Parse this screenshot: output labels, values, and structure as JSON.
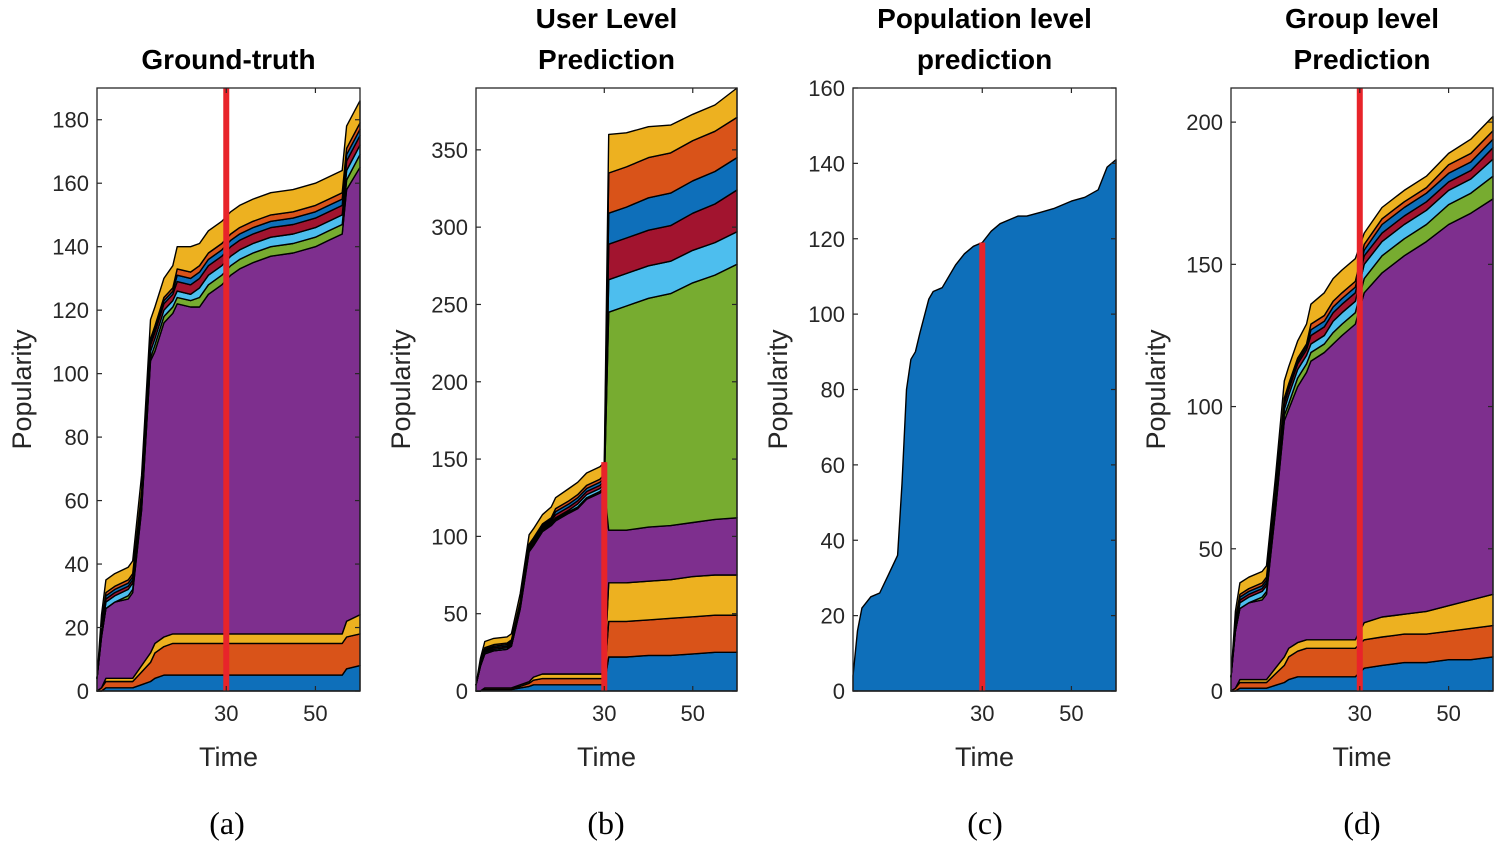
{
  "colors": {
    "blue": "#0e6fba",
    "orange": "#d95319",
    "yellow": "#edb120",
    "purple": "#7e2f8e",
    "green": "#77ac30",
    "cyan": "#4dbeee",
    "darkred": "#a2142f",
    "marker": "#e8242a"
  },
  "chart_data": [
    {
      "type": "area",
      "stacked": true,
      "panel": "a",
      "title": [
        "Ground-truth"
      ],
      "xlabel": "Time",
      "ylabel": "Popularity",
      "caption": "(a)",
      "xlim": [
        1,
        60
      ],
      "ylim": [
        0,
        190
      ],
      "yticks": [
        0,
        20,
        40,
        60,
        80,
        100,
        120,
        140,
        160,
        180
      ],
      "xticks": [
        30,
        50
      ],
      "marker_x": 30,
      "x": [
        1,
        2,
        3,
        5,
        8,
        9,
        11,
        13,
        14,
        16,
        18,
        19,
        22,
        24,
        26,
        29,
        31,
        33,
        36,
        40,
        45,
        50,
        53,
        56,
        57,
        60
      ],
      "series": [
        {
          "name": "blue",
          "color": "blue",
          "values": [
            0,
            0,
            1,
            1,
            1,
            1,
            2,
            3,
            4,
            5,
            5,
            5,
            5,
            5,
            5,
            5,
            5,
            5,
            5,
            5,
            5,
            5,
            5,
            5,
            7,
            8
          ]
        },
        {
          "name": "orange",
          "color": "orange",
          "values": [
            0,
            1,
            2,
            2,
            2,
            2,
            4,
            6,
            8,
            9,
            10,
            10,
            10,
            10,
            10,
            10,
            10,
            10,
            10,
            10,
            10,
            10,
            10,
            10,
            10,
            10
          ]
        },
        {
          "name": "yellow",
          "color": "yellow",
          "values": [
            0,
            0,
            1,
            1,
            1,
            1,
            2,
            3,
            3,
            3,
            3,
            3,
            3,
            3,
            3,
            3,
            3,
            3,
            3,
            3,
            3,
            3,
            3,
            3,
            5,
            6
          ]
        },
        {
          "name": "purple",
          "color": "purple",
          "values": [
            4,
            16,
            22,
            24,
            25,
            27,
            49,
            92,
            92,
            99,
            101,
            104,
            103,
            103,
            107,
            110,
            113,
            115,
            117,
            119,
            120,
            122,
            124,
            126,
            136,
            141
          ]
        },
        {
          "name": "green",
          "color": "green",
          "values": [
            0,
            0,
            0,
            0,
            1,
            1,
            1,
            1,
            2,
            2,
            2,
            2,
            2,
            3,
            3,
            3,
            3,
            3,
            3,
            3,
            3,
            3,
            3,
            3,
            3,
            4
          ]
        },
        {
          "name": "cyan",
          "color": "cyan",
          "values": [
            0,
            1,
            2,
            2,
            2,
            2,
            2,
            2,
            2,
            2,
            2,
            2,
            2,
            3,
            3,
            3,
            3,
            3,
            3,
            3,
            3,
            3,
            3,
            3,
            3,
            3
          ]
        },
        {
          "name": "darkred",
          "color": "darkred",
          "values": [
            0,
            1,
            1,
            1,
            1,
            1,
            1,
            2,
            2,
            2,
            2,
            3,
            3,
            3,
            3,
            3,
            3,
            3,
            3,
            3,
            3,
            3,
            3,
            3,
            3,
            3
          ]
        },
        {
          "name": "blue-top",
          "color": "blue",
          "values": [
            0,
            1,
            1,
            1,
            1,
            1,
            1,
            1,
            1,
            1,
            1,
            2,
            2,
            2,
            2,
            2,
            2,
            2,
            2,
            2,
            2,
            2,
            2,
            2,
            2,
            2
          ]
        },
        {
          "name": "orange-top",
          "color": "orange",
          "values": [
            0,
            1,
            1,
            1,
            1,
            1,
            1,
            1,
            1,
            1,
            1,
            2,
            2,
            2,
            2,
            2,
            2,
            2,
            2,
            2,
            2,
            2,
            2,
            2,
            2,
            2
          ]
        },
        {
          "name": "yellow-top",
          "color": "yellow",
          "values": [
            0,
            3,
            4,
            4,
            4,
            4,
            5,
            6,
            6,
            6,
            7,
            7,
            8,
            7,
            7,
            7,
            7,
            7,
            7,
            7,
            7,
            7,
            7,
            7,
            7,
            7
          ]
        }
      ]
    },
    {
      "type": "area",
      "stacked": true,
      "panel": "b",
      "title": [
        "User Level",
        "Prediction"
      ],
      "xlabel": "Time",
      "ylabel": "Popularity",
      "caption": "(b)",
      "xlim": [
        1,
        60
      ],
      "ylim": [
        0,
        390
      ],
      "yticks": [
        0,
        50,
        100,
        150,
        200,
        250,
        300,
        350
      ],
      "xticks": [
        30,
        50
      ],
      "marker_x": 30,
      "x": [
        1,
        2,
        3,
        5,
        8,
        9,
        11,
        13,
        14,
        16,
        18,
        19,
        22,
        24,
        26,
        29,
        30,
        31,
        35,
        40,
        45,
        50,
        55,
        60
      ],
      "series": [
        {
          "name": "blue",
          "color": "blue",
          "values": [
            0,
            0,
            1,
            1,
            1,
            1,
            2,
            3,
            4,
            4,
            4,
            4,
            4,
            4,
            4,
            4,
            4,
            22,
            22,
            23,
            23,
            24,
            25,
            25
          ]
        },
        {
          "name": "orange",
          "color": "orange",
          "values": [
            0,
            0,
            1,
            1,
            1,
            1,
            1,
            2,
            3,
            4,
            4,
            4,
            4,
            4,
            4,
            4,
            4,
            23,
            23,
            23,
            24,
            24,
            24,
            24
          ]
        },
        {
          "name": "yellow",
          "color": "yellow",
          "values": [
            0,
            0,
            0,
            0,
            0,
            0,
            1,
            1,
            2,
            3,
            3,
            3,
            3,
            3,
            3,
            3,
            3,
            25,
            25,
            25,
            25,
            26,
            26,
            26
          ]
        },
        {
          "name": "purple",
          "color": "purple",
          "values": [
            4,
            16,
            22,
            24,
            25,
            27,
            49,
            84,
            85,
            92,
            96,
            99,
            104,
            107,
            113,
            117,
            120,
            34,
            34,
            35,
            35,
            35,
            36,
            37
          ]
        },
        {
          "name": "green",
          "color": "green",
          "values": [
            0,
            0,
            0,
            0,
            0,
            0,
            1,
            1,
            1,
            1,
            1,
            1,
            1,
            1,
            1,
            1,
            1,
            141,
            145,
            148,
            150,
            155,
            158,
            164
          ]
        },
        {
          "name": "cyan",
          "color": "cyan",
          "values": [
            0,
            0,
            1,
            1,
            1,
            1,
            1,
            1,
            1,
            1,
            1,
            1,
            1,
            2,
            2,
            2,
            2,
            21,
            21,
            21,
            21,
            21,
            21,
            21
          ]
        },
        {
          "name": "darkred",
          "color": "darkred",
          "values": [
            0,
            1,
            1,
            1,
            1,
            1,
            1,
            1,
            1,
            1,
            1,
            2,
            2,
            2,
            2,
            2,
            2,
            23,
            23,
            23,
            23,
            24,
            25,
            27
          ]
        },
        {
          "name": "blue-top",
          "color": "blue",
          "values": [
            0,
            1,
            1,
            1,
            1,
            1,
            1,
            1,
            1,
            1,
            1,
            2,
            2,
            2,
            2,
            2,
            2,
            20,
            20,
            21,
            21,
            21,
            21,
            21
          ]
        },
        {
          "name": "orange-top",
          "color": "orange",
          "values": [
            0,
            1,
            1,
            1,
            1,
            1,
            1,
            1,
            1,
            1,
            1,
            2,
            2,
            2,
            2,
            2,
            2,
            26,
            26,
            26,
            26,
            26,
            26,
            26
          ]
        },
        {
          "name": "yellow-top",
          "color": "yellow",
          "values": [
            0,
            2,
            4,
            4,
            4,
            4,
            5,
            6,
            6,
            6,
            7,
            7,
            8,
            8,
            8,
            8,
            8,
            25,
            22,
            20,
            18,
            17,
            17,
            19
          ]
        }
      ]
    },
    {
      "type": "area",
      "stacked": true,
      "panel": "c",
      "title": [
        "Population level",
        "prediction"
      ],
      "xlabel": "Time",
      "ylabel": "Popularity",
      "caption": "(c)",
      "xlim": [
        1,
        60
      ],
      "ylim": [
        0,
        160
      ],
      "yticks": [
        0,
        20,
        40,
        60,
        80,
        100,
        120,
        140,
        160
      ],
      "xticks": [
        30,
        50
      ],
      "marker_x": 30,
      "x": [
        1,
        2,
        3,
        5,
        7,
        9,
        11,
        12,
        13,
        14,
        15,
        16,
        18,
        19,
        21,
        22,
        24,
        26,
        28,
        30,
        32,
        34,
        36,
        38,
        40,
        43,
        46,
        50,
        53,
        56,
        58,
        60
      ],
      "series": [
        {
          "name": "blue",
          "color": "blue",
          "values": [
            4,
            16,
            22,
            25,
            26,
            31,
            36,
            55,
            80,
            88,
            90,
            95,
            104,
            106,
            107,
            109,
            113,
            116,
            118,
            119,
            122,
            124,
            125,
            126,
            126,
            127,
            128,
            130,
            131,
            133,
            139,
            141
          ]
        }
      ]
    },
    {
      "type": "area",
      "stacked": true,
      "panel": "d",
      "title": [
        "Group level",
        "Prediction"
      ],
      "xlabel": "Time",
      "ylabel": "Popularity",
      "caption": "(d)",
      "xlim": [
        1,
        60
      ],
      "ylim": [
        0,
        212
      ],
      "yticks": [
        0,
        50,
        100,
        150,
        200
      ],
      "xticks": [
        30,
        50
      ],
      "marker_x": 30,
      "x": [
        1,
        2,
        3,
        5,
        8,
        9,
        11,
        13,
        14,
        16,
        18,
        19,
        22,
        24,
        26,
        29,
        31,
        35,
        40,
        45,
        50,
        55,
        60
      ],
      "series": [
        {
          "name": "blue",
          "color": "blue",
          "values": [
            0,
            0,
            1,
            1,
            1,
            1,
            2,
            3,
            4,
            5,
            5,
            5,
            5,
            5,
            5,
            5,
            8,
            9,
            10,
            10,
            11,
            11,
            12
          ]
        },
        {
          "name": "orange",
          "color": "orange",
          "values": [
            0,
            1,
            2,
            2,
            2,
            2,
            4,
            6,
            8,
            9,
            10,
            10,
            10,
            10,
            10,
            10,
            10,
            10,
            10,
            10,
            10,
            11,
            11
          ]
        },
        {
          "name": "yellow",
          "color": "yellow",
          "values": [
            0,
            0,
            1,
            1,
            1,
            1,
            2,
            3,
            3,
            3,
            3,
            3,
            3,
            3,
            3,
            3,
            6,
            7,
            7,
            8,
            9,
            10,
            11
          ]
        },
        {
          "name": "purple",
          "color": "purple",
          "values": [
            5,
            20,
            25,
            27,
            28,
            30,
            55,
            83,
            84,
            90,
            94,
            98,
            101,
            104,
            107,
            111,
            116,
            121,
            126,
            130,
            134,
            136,
            139
          ]
        },
        {
          "name": "green",
          "color": "green",
          "values": [
            0,
            0,
            0,
            0,
            1,
            1,
            2,
            2,
            2,
            3,
            3,
            3,
            3,
            4,
            4,
            4,
            5,
            6,
            6,
            6,
            7,
            7,
            8
          ]
        },
        {
          "name": "cyan",
          "color": "cyan",
          "values": [
            0,
            1,
            2,
            2,
            2,
            2,
            2,
            2,
            3,
            3,
            3,
            3,
            3,
            4,
            4,
            4,
            5,
            5,
            5,
            5,
            5,
            5,
            6
          ]
        },
        {
          "name": "darkred",
          "color": "darkred",
          "values": [
            0,
            1,
            1,
            1,
            1,
            1,
            1,
            2,
            2,
            2,
            2,
            3,
            3,
            3,
            3,
            3,
            3,
            3,
            3,
            3,
            3,
            3,
            4
          ]
        },
        {
          "name": "blue-top",
          "color": "blue",
          "values": [
            0,
            1,
            1,
            1,
            1,
            1,
            1,
            1,
            1,
            1,
            1,
            2,
            2,
            2,
            2,
            2,
            2,
            3,
            3,
            3,
            3,
            3,
            3
          ]
        },
        {
          "name": "orange-top",
          "color": "orange",
          "values": [
            0,
            1,
            1,
            1,
            1,
            1,
            1,
            1,
            1,
            1,
            1,
            2,
            2,
            2,
            2,
            2,
            2,
            2,
            2,
            2,
            3,
            3,
            3
          ]
        },
        {
          "name": "yellow-top",
          "color": "yellow",
          "values": [
            0,
            3,
            4,
            4,
            4,
            4,
            5,
            6,
            6,
            6,
            7,
            7,
            8,
            8,
            8,
            8,
            4,
            4,
            4,
            4,
            4,
            5,
            5
          ]
        }
      ]
    }
  ]
}
